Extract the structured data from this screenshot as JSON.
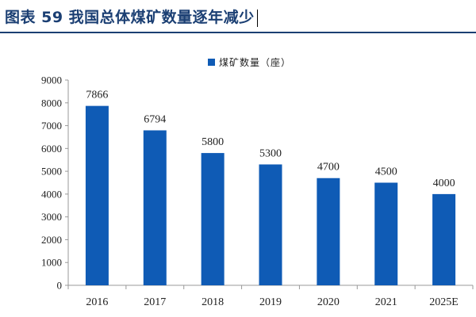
{
  "header": {
    "title": "图表 59 我国总体煤矿数量逐年减少"
  },
  "colors": {
    "bar": "#0f5bb5",
    "title": "#1b3f73",
    "axis": "#999999"
  },
  "chart_data": {
    "type": "bar",
    "title": "",
    "xlabel": "",
    "ylabel": "",
    "categories": [
      "2016",
      "2017",
      "2018",
      "2019",
      "2020",
      "2021",
      "2025E"
    ],
    "series": [
      {
        "name": "煤矿数量（座）",
        "values": [
          7866,
          6794,
          5800,
          5300,
          4700,
          4500,
          4000
        ]
      }
    ],
    "ylim": [
      0,
      9000
    ],
    "yticks": [
      "0",
      "1000",
      "2000",
      "3000",
      "4000",
      "5000",
      "6000",
      "7000",
      "8000",
      "9000"
    ],
    "data_labels": [
      "7866",
      "6794",
      "5800",
      "5300",
      "4700",
      "4500",
      "4000"
    ],
    "grid": false,
    "legend_position": "top"
  }
}
